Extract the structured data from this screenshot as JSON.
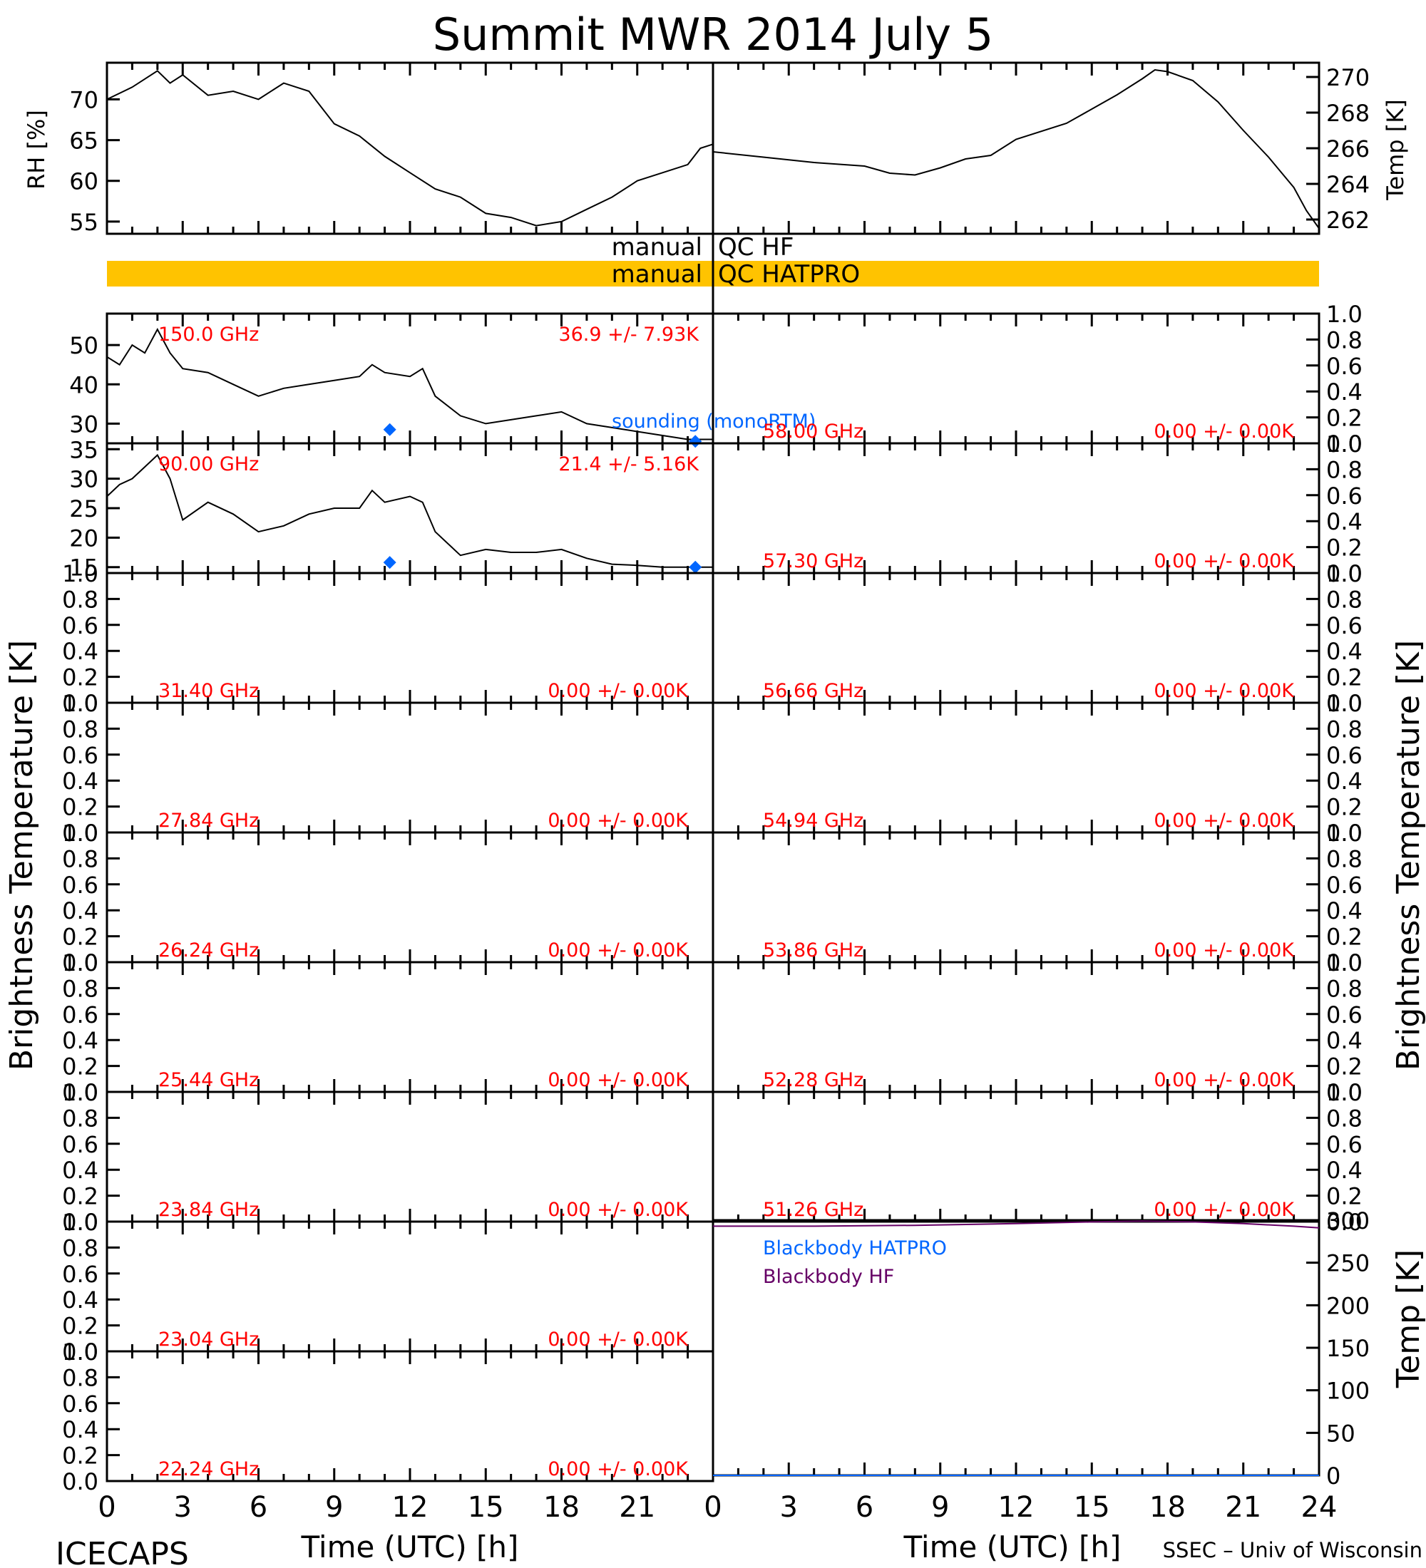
{
  "title": "Summit MWR 2014 July  5",
  "footer": {
    "left": "ICECAPS",
    "right": "SSEC – Univ of Wisconsin",
    "xlabel": "Time (UTC) [h]"
  },
  "labels": {
    "rh": "RH [%]",
    "temp": "Temp [K]",
    "tb": "Brightness Temperature [K]",
    "bb_temp": "Temp [K]",
    "qc_hf_left": "manual",
    "qc_hf_right": "QC HF",
    "qc_hatpro_left": "manual",
    "qc_hatpro_right": "QC HATPRO",
    "sounding": "sounding (monoRTM)",
    "bb_hatpro": "Blackbody HATPRO",
    "bb_hf": "Blackbody HF"
  },
  "colors": {
    "qc_bar": "#ffc300",
    "label_red": "#ff0000",
    "sounding_blue": "#0066ff",
    "bb_hf": "#660066"
  },
  "x_ticks": [
    "0",
    "3",
    "6",
    "9",
    "12",
    "15",
    "18",
    "21"
  ],
  "x_ticks_right": [
    "0",
    "3",
    "6",
    "9",
    "12",
    "15",
    "18",
    "21",
    "24"
  ],
  "left_panels": [
    {
      "freq": "150.0 GHz",
      "stat": "36.9 +/-  7.93K",
      "ticks": [
        "50",
        "40",
        "30"
      ]
    },
    {
      "freq": "90.00 GHz",
      "stat": "21.4 +/-  5.16K",
      "ticks": [
        "35",
        "30",
        "25",
        "20",
        "15"
      ]
    },
    {
      "freq": "31.40 GHz",
      "stat": "0.00 +/-  0.00K",
      "ticks": [
        "1.0",
        "0.8",
        "0.6",
        "0.4",
        "0.2",
        "0.0"
      ]
    },
    {
      "freq": "27.84 GHz",
      "stat": "0.00 +/-  0.00K",
      "ticks": [
        "1.0",
        "0.8",
        "0.6",
        "0.4",
        "0.2",
        "0.0"
      ]
    },
    {
      "freq": "26.24 GHz",
      "stat": "0.00 +/-  0.00K",
      "ticks": [
        "1.0",
        "0.8",
        "0.6",
        "0.4",
        "0.2",
        "0.0"
      ]
    },
    {
      "freq": "25.44 GHz",
      "stat": "0.00 +/-  0.00K",
      "ticks": [
        "1.0",
        "0.8",
        "0.6",
        "0.4",
        "0.2",
        "0.0"
      ]
    },
    {
      "freq": "23.84 GHz",
      "stat": "0.00 +/-  0.00K",
      "ticks": [
        "1.0",
        "0.8",
        "0.6",
        "0.4",
        "0.2",
        "0.0"
      ]
    },
    {
      "freq": "23.04 GHz",
      "stat": "0.00 +/-  0.00K",
      "ticks": [
        "1.0",
        "0.8",
        "0.6",
        "0.4",
        "0.2",
        "0.0"
      ]
    },
    {
      "freq": "22.24 GHz",
      "stat": "0.00 +/-  0.00K",
      "ticks": [
        "1.0",
        "0.8",
        "0.6",
        "0.4",
        "0.2",
        "0.0"
      ]
    }
  ],
  "right_panels": [
    {
      "freq": "58.00 GHz",
      "stat": "0.00 +/-  0.00K",
      "ticks": [
        "1.0",
        "0.8",
        "0.6",
        "0.4",
        "0.2",
        "0.0"
      ]
    },
    {
      "freq": "57.30 GHz",
      "stat": "0.00 +/-  0.00K",
      "ticks": [
        "1.0",
        "0.8",
        "0.6",
        "0.4",
        "0.2",
        "0.0"
      ]
    },
    {
      "freq": "56.66 GHz",
      "stat": "0.00 +/-  0.00K",
      "ticks": [
        "1.0",
        "0.8",
        "0.6",
        "0.4",
        "0.2",
        "0.0"
      ]
    },
    {
      "freq": "54.94 GHz",
      "stat": "0.00 +/-  0.00K",
      "ticks": [
        "1.0",
        "0.8",
        "0.6",
        "0.4",
        "0.2",
        "0.0"
      ]
    },
    {
      "freq": "53.86 GHz",
      "stat": "0.00 +/-  0.00K",
      "ticks": [
        "1.0",
        "0.8",
        "0.6",
        "0.4",
        "0.2",
        "0.0"
      ]
    },
    {
      "freq": "52.28 GHz",
      "stat": "0.00 +/-  0.00K",
      "ticks": [
        "1.0",
        "0.8",
        "0.6",
        "0.4",
        "0.2",
        "0.0"
      ]
    },
    {
      "freq": "51.26 GHz",
      "stat": "0.00 +/-  0.00K",
      "ticks": [
        "1.0",
        "0.8",
        "0.6",
        "0.4",
        "0.2",
        "0.0"
      ]
    }
  ],
  "rh_ticks": [
    "70",
    "65",
    "60",
    "55"
  ],
  "temp_ticks": [
    "270",
    "268",
    "266",
    "264",
    "262"
  ],
  "bb_ticks": [
    "300",
    "250",
    "200",
    "150",
    "100",
    "50",
    "0"
  ],
  "chart_data": [
    {
      "type": "line",
      "xlabel": "",
      "ylabel": "RH [%]",
      "xlim": [
        0,
        24
      ],
      "ylim": [
        53.5,
        74.5
      ],
      "x": [
        0,
        1,
        2,
        2.5,
        3,
        4,
        5,
        6,
        7,
        7.5,
        8,
        9,
        10,
        11,
        12,
        13,
        14,
        15,
        16,
        17,
        18,
        19,
        20,
        21,
        22,
        23,
        23.5,
        24
      ],
      "y": [
        70,
        71.5,
        73.5,
        72,
        73,
        70.5,
        71,
        70,
        72,
        71.5,
        71,
        67,
        65.5,
        63,
        61,
        59,
        58,
        56,
        55.5,
        54.5,
        55,
        56.5,
        58,
        60,
        61,
        62,
        64,
        64.5
      ]
    },
    {
      "type": "line",
      "xlabel": "",
      "ylabel": "Temp [K]",
      "xlim": [
        0,
        24
      ],
      "ylim": [
        261.2,
        270.8
      ],
      "x": [
        0,
        2,
        4,
        6,
        7,
        8,
        9,
        10,
        11,
        12,
        14,
        15,
        16,
        17,
        17.5,
        18,
        19,
        20,
        21,
        22,
        23,
        23.5,
        24
      ],
      "y": [
        265.8,
        265.5,
        265.2,
        265,
        264.6,
        264.5,
        264.9,
        265.4,
        265.6,
        266.5,
        267.4,
        268.2,
        269,
        269.9,
        270.4,
        270.3,
        269.8,
        268.6,
        267,
        265.5,
        263.8,
        262.5,
        261.5
      ]
    },
    {
      "type": "line",
      "xlabel": "",
      "ylabel": "Brightness Temperature [K]",
      "series": [
        {
          "name": "150.0 GHz",
          "x": [
            0,
            0.5,
            1,
            1.5,
            2,
            2.5,
            3,
            4,
            5,
            6,
            7,
            8,
            9,
            10,
            10.5,
            11,
            12,
            12.5,
            13,
            14,
            15,
            16,
            17,
            18,
            19,
            20,
            21,
            22,
            23,
            24
          ],
          "y": [
            47,
            45,
            50,
            48,
            54,
            48,
            44,
            43,
            40,
            37,
            39,
            40,
            41,
            42,
            45,
            43,
            42,
            44,
            37,
            32,
            30,
            31,
            32,
            33,
            30,
            29,
            28,
            27,
            26,
            26
          ]
        }
      ],
      "sounding": {
        "name": "sounding (monoRTM)",
        "x": [
          11.2,
          23.3
        ],
        "y": [
          28.5,
          25.5
        ]
      },
      "xlim": [
        0,
        24
      ],
      "ylim": [
        25,
        58
      ]
    },
    {
      "type": "line",
      "xlabel": "",
      "ylabel": "Brightness Temperature [K]",
      "series": [
        {
          "name": "90.00 GHz",
          "x": [
            0,
            0.5,
            1,
            1.5,
            2,
            2.5,
            3,
            4,
            5,
            6,
            7,
            8,
            9,
            10,
            10.5,
            11,
            12,
            12.5,
            13,
            14,
            15,
            16,
            17,
            18,
            19,
            20,
            21,
            22,
            23,
            24
          ],
          "y": [
            27,
            29,
            30,
            32,
            34,
            30,
            23,
            26,
            24,
            21,
            22,
            24,
            25,
            25,
            28,
            26,
            27,
            26,
            21,
            17,
            18,
            17.5,
            17.5,
            18,
            16.5,
            15.5,
            15.3,
            15,
            15,
            15
          ]
        }
      ],
      "sounding": {
        "name": "sounding (monoRTM)",
        "x": [
          11.2,
          23.3
        ],
        "y": [
          15.8,
          15.0
        ]
      },
      "xlim": [
        0,
        24
      ],
      "ylim": [
        14,
        36
      ]
    },
    {
      "type": "line",
      "xlabel": "",
      "ylabel": "Temp [K]",
      "series": [
        {
          "name": "Blackbody HATPRO",
          "x": [
            0,
            24
          ],
          "y": [
            0,
            0
          ]
        },
        {
          "name": "Blackbody HF",
          "x": [
            0,
            4,
            8,
            12,
            15,
            17,
            19,
            21,
            23,
            24
          ],
          "y": [
            293,
            293,
            294,
            296,
            298,
            299,
            298,
            296,
            293,
            291
          ]
        }
      ],
      "xlim": [
        0,
        24
      ],
      "ylim": [
        0,
        300
      ]
    }
  ]
}
